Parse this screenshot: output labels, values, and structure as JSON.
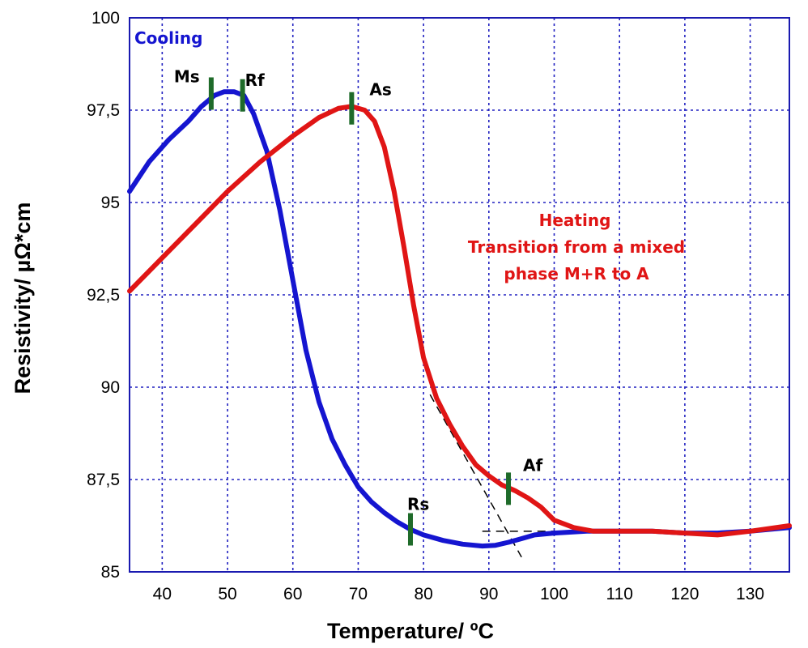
{
  "chart_data": {
    "type": "line",
    "xlabel": "Temperature/ ºC",
    "ylabel": "Resistivity/ µΩ*cm",
    "xlim": [
      35,
      136
    ],
    "ylim": [
      85,
      100
    ],
    "x_ticks": [
      40,
      50,
      60,
      70,
      80,
      90,
      100,
      110,
      120,
      130
    ],
    "x_tick_labels": [
      "40",
      "50",
      "60",
      "70",
      "80",
      "90",
      "100",
      "110",
      "120",
      "130"
    ],
    "y_ticks": [
      85,
      87.5,
      90,
      92.5,
      95,
      97.5,
      100
    ],
    "y_tick_labels": [
      "85",
      "87,5",
      "90",
      "92,5",
      "95",
      "97,5",
      "100"
    ],
    "grid": true,
    "colors": {
      "cooling": "#1515d0",
      "heating": "#e01515",
      "marker": "#1f6b2a",
      "grid": "#2020c0"
    },
    "series": [
      {
        "label": "Cooling",
        "x": [
          35,
          38,
          41,
          44,
          46,
          48,
          49.5,
          51,
          52.5,
          54,
          56,
          58,
          60,
          62,
          64,
          66,
          68,
          70,
          72,
          74,
          76,
          78,
          80,
          83,
          86,
          89,
          91,
          93,
          95,
          97,
          100,
          105,
          110,
          115,
          120,
          125,
          130,
          136
        ],
        "y": [
          95.3,
          96.1,
          96.7,
          97.2,
          97.6,
          97.9,
          98.0,
          98.0,
          97.9,
          97.4,
          96.4,
          94.8,
          92.9,
          91.0,
          89.6,
          88.6,
          87.9,
          87.3,
          86.9,
          86.6,
          86.35,
          86.15,
          86.0,
          85.85,
          85.75,
          85.7,
          85.72,
          85.8,
          85.9,
          86.0,
          86.05,
          86.1,
          86.1,
          86.1,
          86.05,
          86.05,
          86.1,
          86.2
        ]
      },
      {
        "label": "Heating",
        "x": [
          35,
          40,
          45,
          50,
          55,
          60,
          64,
          67,
          69,
          71,
          72.5,
          74,
          75.5,
          77,
          78.5,
          80,
          82,
          84,
          86,
          88,
          90,
          92,
          94,
          96,
          98,
          100,
          103,
          106,
          110,
          115,
          120,
          125,
          130,
          136
        ],
        "y": [
          92.6,
          93.5,
          94.4,
          95.3,
          96.1,
          96.8,
          97.3,
          97.55,
          97.6,
          97.5,
          97.2,
          96.5,
          95.3,
          93.8,
          92.2,
          90.8,
          89.7,
          89.0,
          88.4,
          87.9,
          87.6,
          87.35,
          87.2,
          87.0,
          86.75,
          86.4,
          86.2,
          86.1,
          86.1,
          86.1,
          86.05,
          86.0,
          86.1,
          86.25
        ]
      }
    ],
    "annotations": [
      {
        "text": "Cooling"
      },
      {
        "text": "Heating"
      },
      {
        "text": "Transition from a mixed"
      },
      {
        "text": "phase M+R to A"
      }
    ],
    "markers": [
      {
        "label": "Ms",
        "x": 47.5,
        "y": 97.95
      },
      {
        "label": "Rf",
        "x": 52.3,
        "y": 97.9
      },
      {
        "label": "As",
        "x": 69.0,
        "y": 97.55
      },
      {
        "label": "Rs",
        "x": 78.0,
        "y": 86.15
      },
      {
        "label": "Af",
        "x": 93.0,
        "y": 87.25
      }
    ],
    "guide_lines": [
      {
        "from": [
          81,
          89.8
        ],
        "to": [
          95,
          85.4
        ],
        "style": "dashed"
      },
      {
        "from": [
          89,
          86.1
        ],
        "to": [
          109,
          86.1
        ],
        "style": "dashed"
      }
    ]
  }
}
